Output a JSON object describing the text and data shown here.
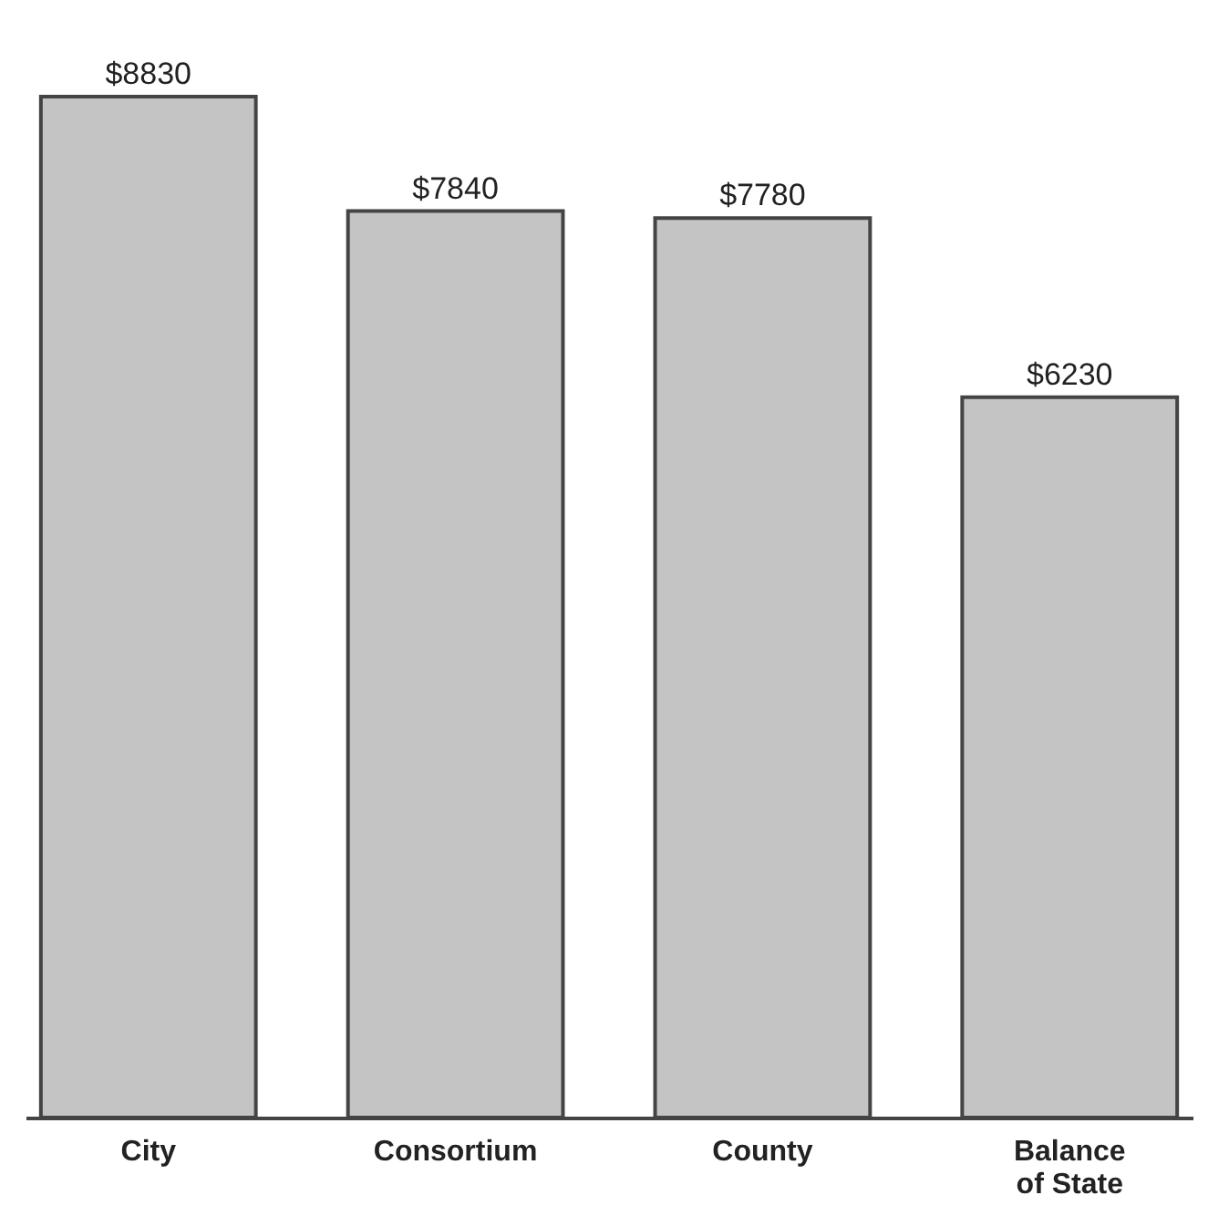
{
  "chart_data": {
    "type": "bar",
    "categories": [
      "City",
      "Consortium",
      "County",
      "Balance of State"
    ],
    "values": [
      8830,
      7840,
      7780,
      6230
    ],
    "value_labels": [
      "$8830",
      "$7840",
      "$7780",
      "$6230"
    ],
    "color": "#c4c4c4"
  }
}
